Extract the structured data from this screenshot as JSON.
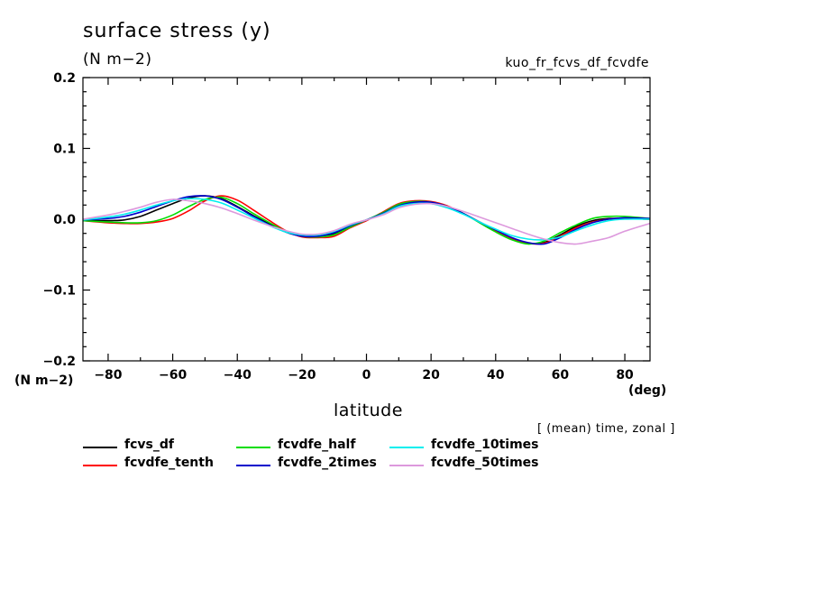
{
  "header": {
    "title": "surface stress (y)",
    "units": "(N m−2)",
    "run_name": "kuo_fr_fcvs_df_fcvdfe"
  },
  "axes": {
    "y_unit": "(N m−2)",
    "x_unit": "(deg)",
    "x_label": "latitude",
    "note": "[ (mean) time, zonal ]"
  },
  "chart_data": {
    "type": "line",
    "title": "surface stress (y)",
    "xlabel": "latitude",
    "ylabel": "(N m−2)",
    "xlim": [
      -87.8,
      87.8
    ],
    "ylim": [
      -0.2,
      0.2
    ],
    "x_ticks": [
      -80,
      -60,
      -40,
      -20,
      0,
      20,
      40,
      60,
      80
    ],
    "x_tick_labels": [
      "−80",
      "−60",
      "−40",
      "−20",
      "0",
      "20",
      "40",
      "60",
      "80"
    ],
    "y_ticks": [
      0.2,
      0.1,
      0.0,
      -0.1,
      -0.2
    ],
    "y_tick_labels": [
      "0.2",
      "0.1",
      "0.0",
      "−0.1",
      "−0.2"
    ],
    "grid": false,
    "legend_position": "bottom",
    "series": [
      {
        "name": "fcvs_df",
        "color": "#000000",
        "x": [
          -87.8,
          -80,
          -75,
          -70,
          -65,
          -60,
          -55,
          -50,
          -45,
          -40,
          -35,
          -30,
          -25,
          -20,
          -15,
          -10,
          -5,
          0,
          5,
          10,
          15,
          20,
          25,
          30,
          35,
          40,
          45,
          50,
          55,
          60,
          65,
          70,
          75,
          80,
          87.8
        ],
        "y": [
          -0.002,
          -0.002,
          -0.001,
          0.004,
          0.013,
          0.022,
          0.03,
          0.033,
          0.029,
          0.018,
          0.005,
          -0.007,
          -0.018,
          -0.024,
          -0.025,
          -0.02,
          -0.009,
          -0.001,
          0.008,
          0.02,
          0.024,
          0.024,
          0.018,
          0.008,
          -0.004,
          -0.016,
          -0.027,
          -0.034,
          -0.033,
          -0.022,
          -0.01,
          -0.002,
          0.001,
          0.001,
          0.0
        ]
      },
      {
        "name": "fcvdfe_tenth",
        "color": "#ff0000",
        "x": [
          -87.8,
          -80,
          -75,
          -70,
          -65,
          -60,
          -55,
          -50,
          -45,
          -40,
          -35,
          -30,
          -25,
          -20,
          -15,
          -10,
          -5,
          0,
          5,
          10,
          15,
          20,
          25,
          30,
          35,
          40,
          45,
          50,
          55,
          60,
          65,
          70,
          75,
          80,
          87.8
        ],
        "y": [
          -0.002,
          -0.005,
          -0.006,
          -0.006,
          -0.004,
          0.001,
          0.012,
          0.026,
          0.033,
          0.027,
          0.013,
          -0.002,
          -0.016,
          -0.025,
          -0.026,
          -0.024,
          -0.012,
          -0.002,
          0.01,
          0.022,
          0.026,
          0.025,
          0.019,
          0.008,
          -0.004,
          -0.016,
          -0.027,
          -0.034,
          -0.034,
          -0.024,
          -0.012,
          -0.004,
          0.0,
          0.001,
          0.0
        ]
      },
      {
        "name": "fcvdfe_half",
        "color": "#00dd00",
        "x": [
          -87.8,
          -80,
          -75,
          -70,
          -65,
          -60,
          -55,
          -50,
          -45,
          -40,
          -35,
          -30,
          -25,
          -20,
          -15,
          -10,
          -5,
          0,
          5,
          10,
          15,
          20,
          25,
          30,
          35,
          40,
          45,
          50,
          55,
          60,
          65,
          70,
          75,
          80,
          87.8
        ],
        "y": [
          -0.002,
          -0.004,
          -0.005,
          -0.005,
          -0.002,
          0.006,
          0.018,
          0.028,
          0.031,
          0.022,
          0.008,
          -0.005,
          -0.017,
          -0.024,
          -0.025,
          -0.022,
          -0.011,
          -0.001,
          0.009,
          0.021,
          0.025,
          0.024,
          0.018,
          0.008,
          -0.005,
          -0.018,
          -0.029,
          -0.035,
          -0.031,
          -0.019,
          -0.008,
          0.001,
          0.004,
          0.004,
          0.001
        ]
      },
      {
        "name": "fcvdfe_2times",
        "color": "#0000cc",
        "x": [
          -87.8,
          -80,
          -75,
          -70,
          -65,
          -60,
          -55,
          -50,
          -45,
          -40,
          -35,
          -30,
          -25,
          -20,
          -15,
          -10,
          -5,
          0,
          5,
          10,
          15,
          20,
          25,
          30,
          35,
          40,
          45,
          50,
          55,
          60,
          65,
          70,
          75,
          80,
          87.8
        ],
        "y": [
          -0.001,
          0.001,
          0.004,
          0.01,
          0.018,
          0.026,
          0.032,
          0.033,
          0.028,
          0.017,
          0.004,
          -0.008,
          -0.018,
          -0.024,
          -0.024,
          -0.019,
          -0.009,
          -0.001,
          0.008,
          0.019,
          0.024,
          0.024,
          0.018,
          0.008,
          -0.004,
          -0.015,
          -0.026,
          -0.033,
          -0.035,
          -0.026,
          -0.014,
          -0.005,
          0.0,
          0.002,
          0.001
        ]
      },
      {
        "name": "fcvdfe_10times",
        "color": "#00eeee",
        "x": [
          -87.8,
          -80,
          -75,
          -70,
          -65,
          -60,
          -55,
          -50,
          -45,
          -40,
          -35,
          -30,
          -25,
          -20,
          -15,
          -10,
          -5,
          0,
          5,
          10,
          15,
          20,
          25,
          30,
          35,
          40,
          45,
          50,
          55,
          60,
          65,
          70,
          75,
          80,
          87.8
        ],
        "y": [
          -0.001,
          0.003,
          0.007,
          0.013,
          0.02,
          0.026,
          0.029,
          0.028,
          0.023,
          0.013,
          0.002,
          -0.009,
          -0.018,
          -0.022,
          -0.022,
          -0.017,
          -0.008,
          -0.001,
          0.007,
          0.018,
          0.022,
          0.022,
          0.016,
          0.007,
          -0.004,
          -0.014,
          -0.023,
          -0.028,
          -0.029,
          -0.025,
          -0.016,
          -0.008,
          -0.002,
          0.0,
          0.0
        ]
      },
      {
        "name": "fcvdfe_50times",
        "color": "#dd99dd",
        "x": [
          -87.8,
          -80,
          -75,
          -70,
          -65,
          -60,
          -55,
          -50,
          -45,
          -40,
          -35,
          -30,
          -25,
          -20,
          -15,
          -10,
          -5,
          0,
          5,
          10,
          15,
          20,
          25,
          30,
          35,
          40,
          45,
          50,
          55,
          60,
          65,
          70,
          75,
          80,
          87.8
        ],
        "y": [
          0.0,
          0.006,
          0.011,
          0.017,
          0.024,
          0.028,
          0.026,
          0.022,
          0.016,
          0.008,
          -0.001,
          -0.009,
          -0.016,
          -0.021,
          -0.021,
          -0.016,
          -0.007,
          -0.001,
          0.006,
          0.016,
          0.021,
          0.022,
          0.018,
          0.011,
          0.003,
          -0.005,
          -0.013,
          -0.021,
          -0.028,
          -0.033,
          -0.035,
          -0.031,
          -0.026,
          -0.017,
          -0.006
        ]
      }
    ]
  }
}
